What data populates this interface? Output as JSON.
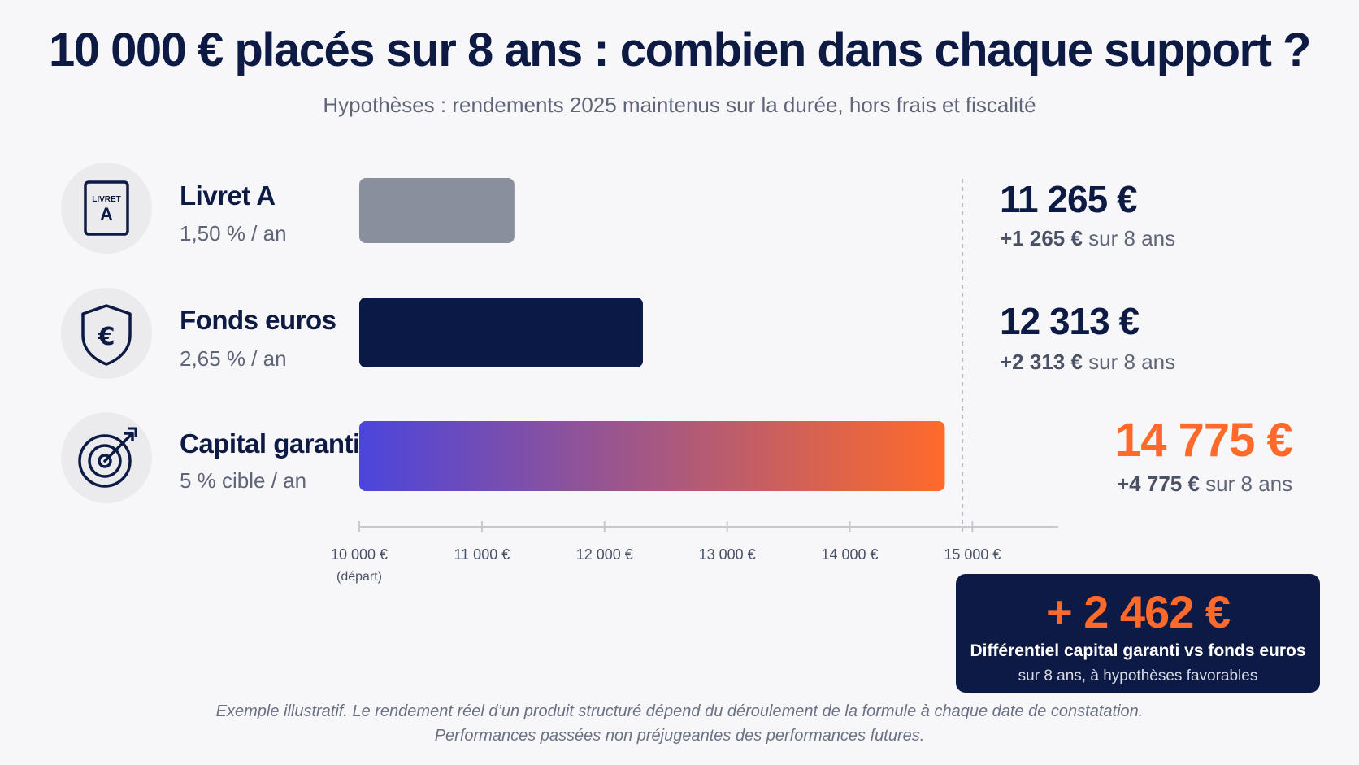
{
  "header": {
    "title": "10 000 € placés sur 8 ans : combien dans chaque support ?",
    "subtitle": "Hypothèses : rendements 2025 maintenus sur la durée, hors frais et fiscalité"
  },
  "chart_data": {
    "type": "bar",
    "orientation": "horizontal",
    "categories": [
      "Livret A",
      "Fonds euros",
      "Capital garanti"
    ],
    "rates": [
      "1,50 % / an",
      "2,65 % / an",
      "5 % cible / an"
    ],
    "values": [
      11265,
      12313,
      14775
    ],
    "value_labels": [
      "11 265 €",
      "12 313 €",
      "14 775 €"
    ],
    "gains": [
      "+1 265 €",
      "+2 313 €",
      "+4 775 €"
    ],
    "gain_suffix": "sur 8 ans",
    "icons": [
      "livret-icon",
      "shield-euro-icon",
      "target-arrow-icon"
    ],
    "icon_text": [
      "LIVRET",
      "A"
    ],
    "xlim": [
      10000,
      15700
    ],
    "xticks": [
      10000,
      11000,
      12000,
      13000,
      14000,
      15000
    ],
    "xtick_labels": [
      "10 000 €",
      "11 000 €",
      "12 000 €",
      "13 000 €",
      "14 000 €",
      "15 000 €"
    ],
    "xtick_sublabel": "(départ)",
    "reference_line": 15000,
    "grid": false,
    "colors": {
      "livret": "#8a8f9d",
      "fonds": "#0b1946",
      "gradient_start": "#4b45dc",
      "gradient_end": "#ff6a2a"
    }
  },
  "callout": {
    "value": "+ 2 462 €",
    "label": "Différentiel capital garanti vs fonds euros",
    "sub": "sur 8 ans, à hypothèses favorables"
  },
  "footnote": {
    "line1": "Exemple illustratif. Le rendement réel d’un produit structuré dépend du déroulement de la formule à chaque date de constatation.",
    "line2": "Performances passées non préjugeantes des performances futures."
  }
}
